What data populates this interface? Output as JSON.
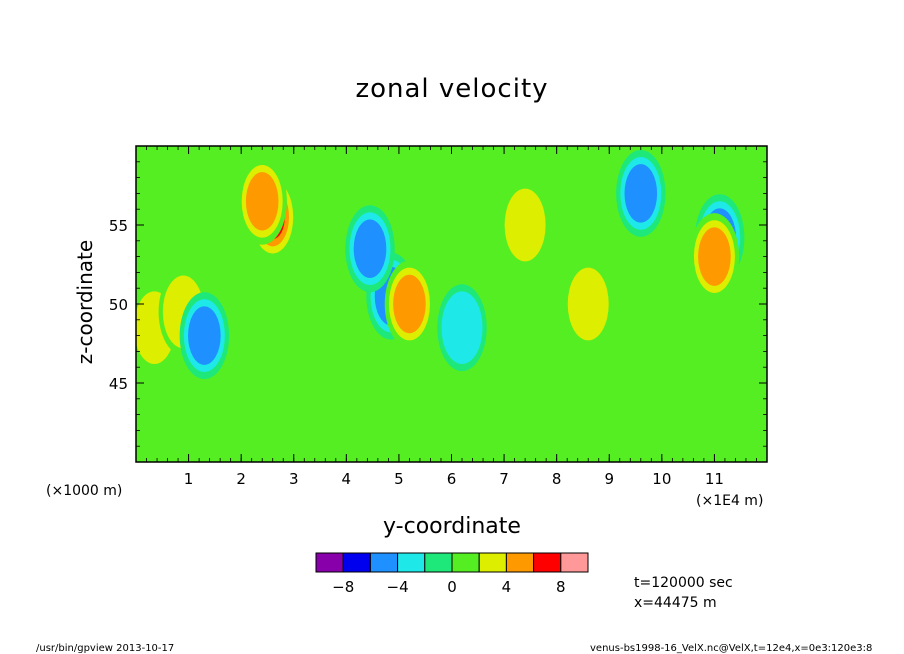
{
  "chart_data": {
    "type": "heatmap",
    "title": "zonal velocity",
    "xlabel": "y-coordinate",
    "ylabel": "z-coordinate",
    "x_unit_note": "(×1E4 m)",
    "y_unit_note": "(×1000 m)",
    "x_ticks": [
      "1",
      "2",
      "3",
      "4",
      "5",
      "6",
      "7",
      "8",
      "9",
      "10",
      "11"
    ],
    "y_ticks": [
      "45",
      "50",
      "55"
    ],
    "xlim": [
      0,
      12
    ],
    "ylim": [
      40,
      60
    ],
    "colorbar": {
      "levels": [
        -10,
        -8,
        -6,
        -4,
        -2,
        0,
        2,
        4,
        6,
        8,
        10
      ],
      "tick_labels": [
        "-8",
        "-4",
        "0",
        "4",
        "8"
      ],
      "colors": [
        "#8800aa",
        "#0000ee",
        "#1e90ff",
        "#1ee8e8",
        "#1ee87a",
        "#55ee22",
        "#ddee00",
        "#ff9900",
        "#ff0000",
        "#ff9999"
      ]
    },
    "background_color": "#55ee22",
    "features": [
      {
        "y": 2.6,
        "z": 55.5,
        "value": 9
      },
      {
        "y": 2.4,
        "z": 56.5,
        "value": 6
      },
      {
        "y": 9.6,
        "z": 57.0,
        "value": -6
      },
      {
        "y": 4.85,
        "z": 50.5,
        "value": -7
      },
      {
        "y": 4.45,
        "z": 53.5,
        "value": -6
      },
      {
        "y": 11.1,
        "z": 54.2,
        "value": -6
      },
      {
        "y": 11.0,
        "z": 53.0,
        "value": 6
      },
      {
        "y": 5.2,
        "z": 50.0,
        "value": 6
      },
      {
        "y": 0.35,
        "z": 48.5,
        "value": 5
      },
      {
        "y": 0.9,
        "z": 49.5,
        "value": 5
      },
      {
        "y": 1.3,
        "z": 48.0,
        "value": -6
      },
      {
        "y": 6.2,
        "z": 48.5,
        "value": -5
      },
      {
        "y": 7.4,
        "z": 55.0,
        "value": 4
      },
      {
        "y": 8.6,
        "z": 50.0,
        "value": 4
      }
    ]
  },
  "info": {
    "time": "t=120000  sec",
    "position": "x=44475  m"
  },
  "footer": {
    "left": "/usr/bin/gpview   2013-10-17",
    "right": "venus-bs1998-16_VelX.nc@VelX,t=12e4,x=0e3:120e3:8"
  }
}
